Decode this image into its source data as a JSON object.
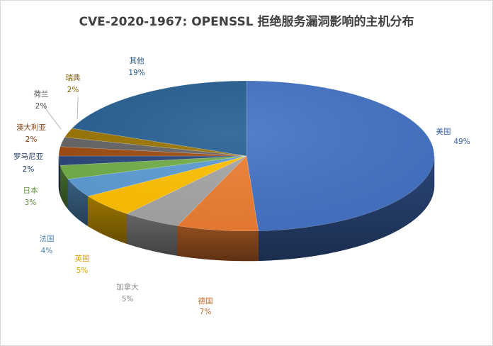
{
  "chart_data": {
    "type": "pie",
    "title": "CVE-2020-1967: OPENSSL 拒绝服务漏洞影响的主机分布",
    "unit": "%",
    "slices": [
      {
        "label": "美国",
        "value": 49,
        "display": "49%",
        "color": "#4472c4"
      },
      {
        "label": "德国",
        "value": 7,
        "display": "7%",
        "color": "#ed7d31"
      },
      {
        "label": "加拿大",
        "value": 5,
        "display": "5%",
        "color": "#a5a5a5"
      },
      {
        "label": "英国",
        "value": 5,
        "display": "5%",
        "color": "#ffc000"
      },
      {
        "label": "法国",
        "value": 4,
        "display": "4%",
        "color": "#5b9bd5"
      },
      {
        "label": "日本",
        "value": 3,
        "display": "3%",
        "color": "#70ad47"
      },
      {
        "label": "罗马尼亚",
        "value": 2,
        "display": "2%",
        "color": "#264478"
      },
      {
        "label": "澳大利亚",
        "value": 2,
        "display": "2%",
        "color": "#9e480e"
      },
      {
        "label": "荷兰",
        "value": 2,
        "display": "2%",
        "color": "#636363"
      },
      {
        "label": "瑞典",
        "value": 2,
        "display": "2%",
        "color": "#997300"
      },
      {
        "label": "其他",
        "value": 19,
        "display": "19%",
        "color": "#255e91"
      }
    ],
    "legend": "none"
  }
}
